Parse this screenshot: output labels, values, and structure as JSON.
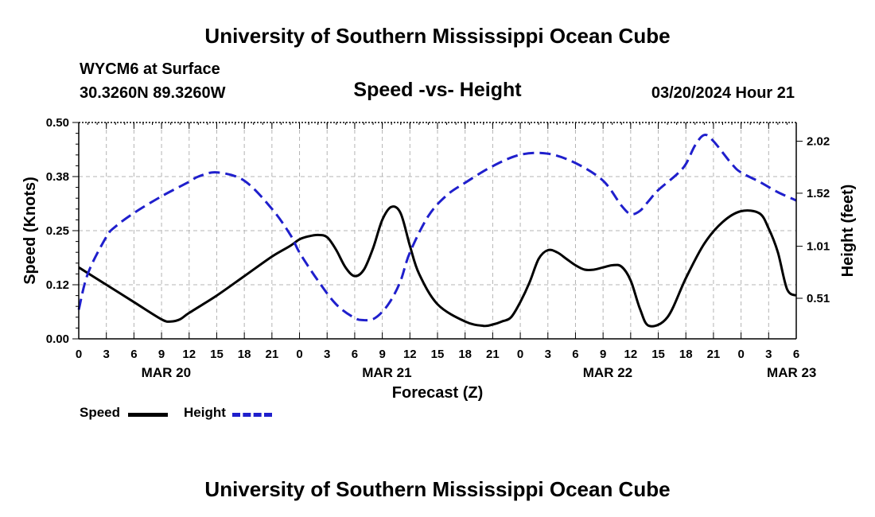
{
  "page": {
    "title_top": "University of Southern Mississippi Ocean Cube",
    "title_bottom": "University of Southern Mississippi Ocean Cube",
    "station": "WYCM6 at Surface",
    "coords": "30.3260N  89.3260W",
    "chart_title": "Speed -vs- Height",
    "datetime": "03/20/2024 Hour 21",
    "legend": {
      "speed_label": "Speed",
      "height_label": "Height"
    }
  },
  "chart_data": {
    "type": "line",
    "title": "Speed -vs- Height",
    "xlabel": "Forecast (Z)",
    "ylabel_left": "Speed (Knots)",
    "ylabel_right": "Height (feet)",
    "x_range_hours": [
      0,
      78
    ],
    "x_tick_step_hours": 3,
    "x_tick_labels": [
      "0",
      "3",
      "6",
      "9",
      "12",
      "15",
      "18",
      "21",
      "0",
      "3",
      "6",
      "9",
      "12",
      "15",
      "18",
      "21",
      "0",
      "3",
      "6",
      "9",
      "12",
      "15",
      "18",
      "21",
      "0",
      "3",
      "6"
    ],
    "date_labels": [
      {
        "label": "MAR 20",
        "hour": 9.5
      },
      {
        "label": "MAR 21",
        "hour": 33.5
      },
      {
        "label": "MAR 22",
        "hour": 57.5
      },
      {
        "label": "MAR 23",
        "hour": 77.5
      }
    ],
    "y_left": {
      "min": 0,
      "max": 0.5,
      "ticks": [
        0.0,
        0.125,
        0.25,
        0.375,
        0.5
      ],
      "tick_labels": [
        "0.00",
        "0.12",
        "0.25",
        "0.38",
        "0.50"
      ]
    },
    "y_right": {
      "min": 0.12,
      "max": 2.2,
      "ticks": [
        0.51,
        1.01,
        1.52,
        2.02
      ],
      "tick_labels": [
        "0.51",
        "1.01",
        "1.52",
        "2.02"
      ]
    },
    "grid": true,
    "series": [
      {
        "name": "Speed",
        "axis": "left",
        "color": "#000000",
        "dash": "solid",
        "x": [
          0,
          3,
          6,
          9,
          10,
          11,
          12,
          15,
          18,
          21,
          23,
          24,
          25,
          26,
          27,
          28,
          29,
          30,
          31,
          32,
          33,
          34,
          35,
          36,
          37,
          39,
          42,
          44,
          45,
          46,
          47,
          48,
          49,
          50,
          51,
          52,
          53,
          54,
          55,
          56,
          57,
          58,
          59,
          60,
          61,
          62,
          64,
          66,
          68,
          70,
          72,
          74,
          75,
          76,
          77,
          78
        ],
        "values": [
          0.165,
          0.125,
          0.085,
          0.045,
          0.04,
          0.045,
          0.06,
          0.1,
          0.145,
          0.19,
          0.215,
          0.23,
          0.237,
          0.24,
          0.235,
          0.205,
          0.165,
          0.145,
          0.16,
          0.21,
          0.275,
          0.305,
          0.29,
          0.215,
          0.15,
          0.08,
          0.04,
          0.03,
          0.033,
          0.04,
          0.05,
          0.085,
          0.13,
          0.185,
          0.205,
          0.2,
          0.185,
          0.17,
          0.16,
          0.16,
          0.165,
          0.17,
          0.167,
          0.135,
          0.07,
          0.03,
          0.05,
          0.14,
          0.22,
          0.27,
          0.295,
          0.29,
          0.255,
          0.2,
          0.115,
          0.1
        ]
      },
      {
        "name": "Height",
        "axis": "right",
        "color": "#1f1fcc",
        "dash": "dashed",
        "x": [
          0,
          1,
          3,
          4,
          6,
          9,
          12,
          13,
          15,
          18,
          21,
          23,
          24,
          26,
          28,
          30,
          31,
          32,
          33,
          34,
          35,
          36,
          38,
          40,
          42,
          45,
          48,
          51,
          54,
          57,
          59,
          60,
          61,
          62,
          63,
          65,
          66,
          67,
          68,
          69,
          71,
          72,
          74,
          76,
          78
        ],
        "values": [
          0.4,
          0.75,
          1.1,
          1.2,
          1.33,
          1.49,
          1.63,
          1.68,
          1.72,
          1.64,
          1.37,
          1.12,
          0.95,
          0.68,
          0.45,
          0.32,
          0.3,
          0.31,
          0.38,
          0.5,
          0.68,
          0.95,
          1.3,
          1.5,
          1.62,
          1.78,
          1.89,
          1.9,
          1.81,
          1.64,
          1.4,
          1.32,
          1.35,
          1.45,
          1.55,
          1.7,
          1.8,
          1.98,
          2.08,
          2.02,
          1.8,
          1.72,
          1.63,
          1.53,
          1.45
        ]
      }
    ]
  }
}
